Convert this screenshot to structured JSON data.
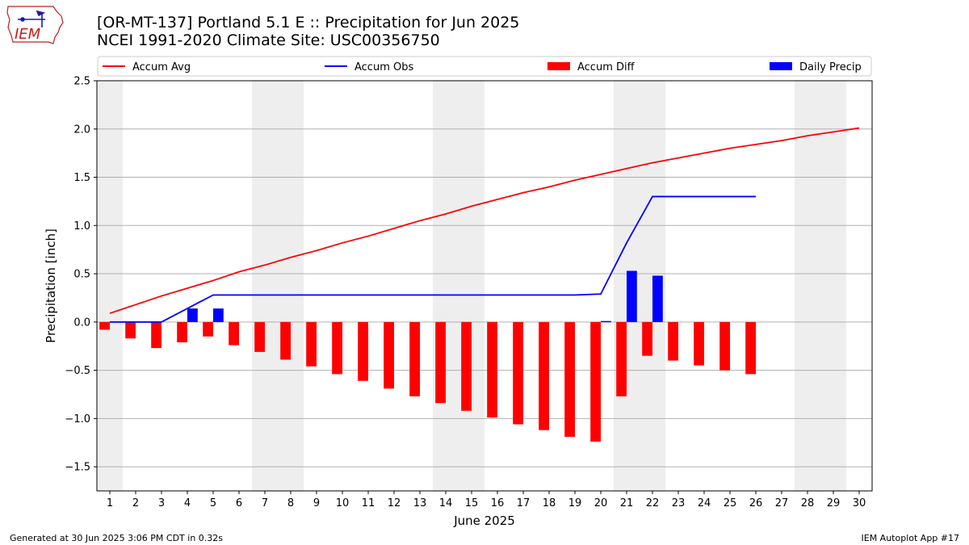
{
  "header": {
    "title_line1": "[OR-MT-137] Portland 5.1 E :: Precipitation for Jun 2025",
    "title_line2": "NCEI 1991-2020 Climate Site: USC00356750"
  },
  "logo": {
    "text": "IEM",
    "icon": "iem-iowa-logo"
  },
  "footer": {
    "left": "Generated at 30 Jun 2025 3:06 PM CDT in 0.32s",
    "right": "IEM Autoplot App #17"
  },
  "colors": {
    "avg": "#ff0000",
    "obs": "#0000ff",
    "diff": "#ff0000",
    "daily": "#0000ff",
    "weekend": "#eeeeee",
    "grid": "#b0b0b0"
  },
  "chart_data": {
    "type": "bar",
    "xlabel": "June 2025",
    "ylabel": "Precipitation [inch]",
    "ylim": [
      -1.75,
      2.5
    ],
    "yticks": [
      -1.5,
      -1.0,
      -0.5,
      0.0,
      0.5,
      1.0,
      1.5,
      2.0,
      2.5
    ],
    "ytick_labels": [
      "−1.5",
      "−1.0",
      "−0.5",
      "0.0",
      "0.5",
      "1.0",
      "1.5",
      "2.0",
      "2.5"
    ],
    "days": [
      1,
      2,
      3,
      4,
      5,
      6,
      7,
      8,
      9,
      10,
      11,
      12,
      13,
      14,
      15,
      16,
      17,
      18,
      19,
      20,
      21,
      22,
      23,
      24,
      25,
      26,
      27,
      28,
      29,
      30
    ],
    "weekend_days": [
      1,
      7,
      8,
      14,
      15,
      21,
      22,
      28,
      29
    ],
    "grid": "horizontal",
    "legend": {
      "placement": "top",
      "entries": [
        {
          "label": "Accum Avg",
          "kind": "line",
          "color": "#ff0000"
        },
        {
          "label": "Accum Obs",
          "kind": "line",
          "color": "#0000ff"
        },
        {
          "label": "Accum Diff",
          "kind": "bar",
          "color": "#ff0000"
        },
        {
          "label": "Daily Precip",
          "kind": "bar",
          "color": "#0000ff"
        }
      ]
    },
    "series": [
      {
        "name": "Accum Avg",
        "type": "line",
        "values": [
          0.09,
          0.18,
          0.27,
          0.35,
          0.43,
          0.52,
          0.59,
          0.67,
          0.74,
          0.82,
          0.89,
          0.97,
          1.05,
          1.12,
          1.2,
          1.27,
          1.34,
          1.4,
          1.47,
          1.53,
          1.59,
          1.65,
          1.7,
          1.75,
          1.8,
          1.84,
          1.88,
          1.93,
          1.97,
          2.01
        ]
      },
      {
        "name": "Accum Obs",
        "type": "line",
        "values": [
          0.0,
          0.0,
          0.0,
          0.14,
          0.28,
          0.28,
          0.28,
          0.28,
          0.28,
          0.28,
          0.28,
          0.28,
          0.28,
          0.28,
          0.28,
          0.28,
          0.28,
          0.28,
          0.28,
          0.29,
          0.82,
          1.3,
          1.3,
          1.3,
          1.3,
          1.3
        ]
      },
      {
        "name": "Accum Diff",
        "type": "bar",
        "values": [
          -0.08,
          -0.17,
          -0.27,
          -0.21,
          -0.15,
          -0.24,
          -0.31,
          -0.39,
          -0.46,
          -0.54,
          -0.61,
          -0.69,
          -0.77,
          -0.84,
          -0.92,
          -0.99,
          -1.06,
          -1.12,
          -1.19,
          -1.24,
          -0.77,
          -0.35,
          -0.4,
          -0.45,
          -0.5,
          -0.54
        ]
      },
      {
        "name": "Daily Precip",
        "type": "bar",
        "values": [
          0.0,
          0.0,
          0.0,
          0.14,
          0.14,
          0.0,
          0.0,
          0.0,
          0.0,
          0.0,
          0.0,
          0.0,
          0.0,
          0.0,
          0.0,
          0.0,
          0.0,
          0.0,
          0.0,
          0.01,
          0.53,
          0.48,
          0.0,
          0.0,
          0.0,
          0.0
        ]
      }
    ]
  }
}
